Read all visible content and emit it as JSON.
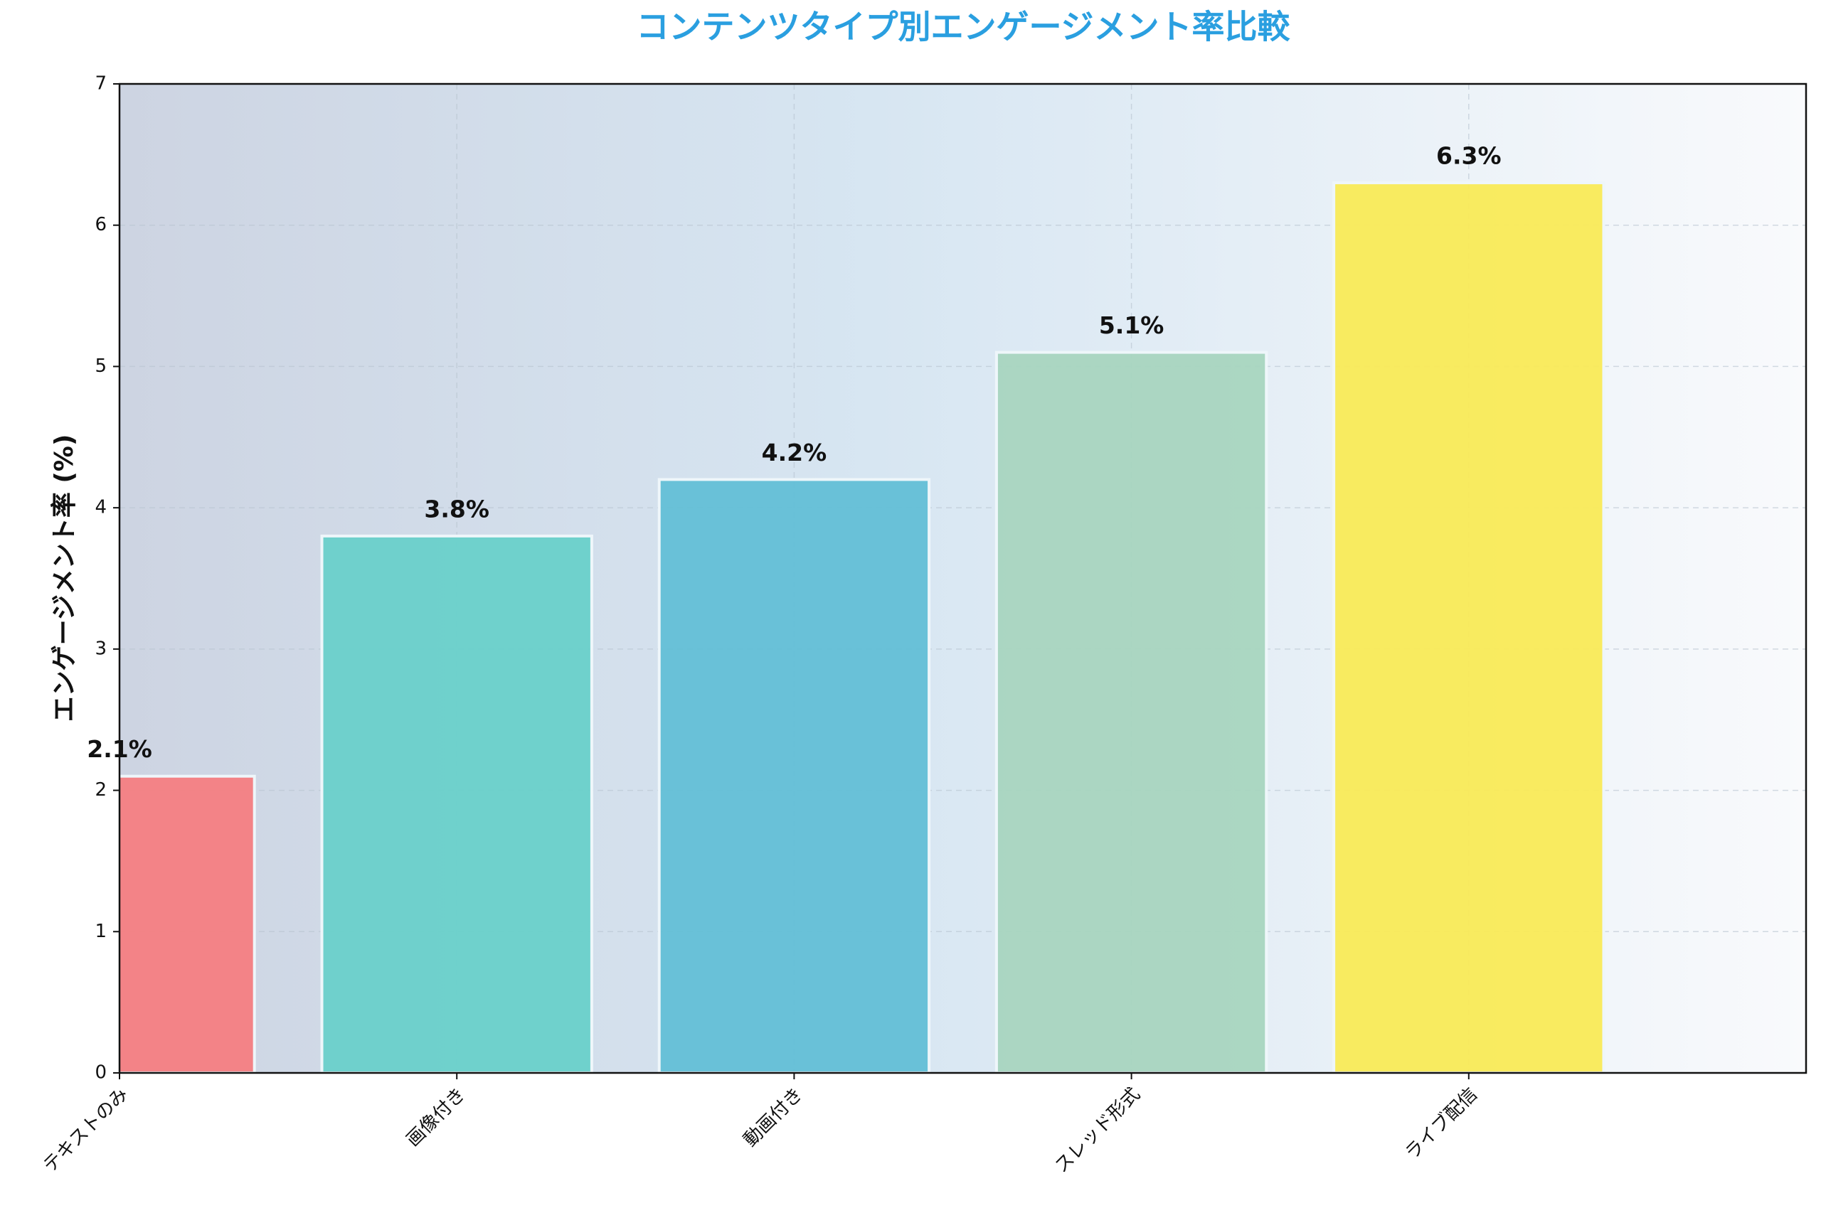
{
  "chart_data": {
    "type": "bar",
    "title": "コンテンツタイプ別エンゲージメント率比較",
    "y_label": "エンゲージメント率 (%)",
    "categories": [
      "テキストのみ",
      "画像付き",
      "動画付き",
      "スレッド形式",
      "ライブ配信"
    ],
    "values": [
      2.1,
      3.8,
      4.2,
      5.1,
      6.3
    ],
    "value_labels": [
      "2.1%",
      "3.8%",
      "4.2%",
      "5.1%",
      "6.3%"
    ],
    "colors": [
      "#f47e82",
      "#69d0ca",
      "#63bfd6",
      "#a8d5bf",
      "#f9ea57"
    ],
    "ylim": [
      0,
      7
    ],
    "yticks": [
      0,
      1,
      2,
      3,
      4,
      5,
      6,
      7
    ],
    "grid": true
  }
}
